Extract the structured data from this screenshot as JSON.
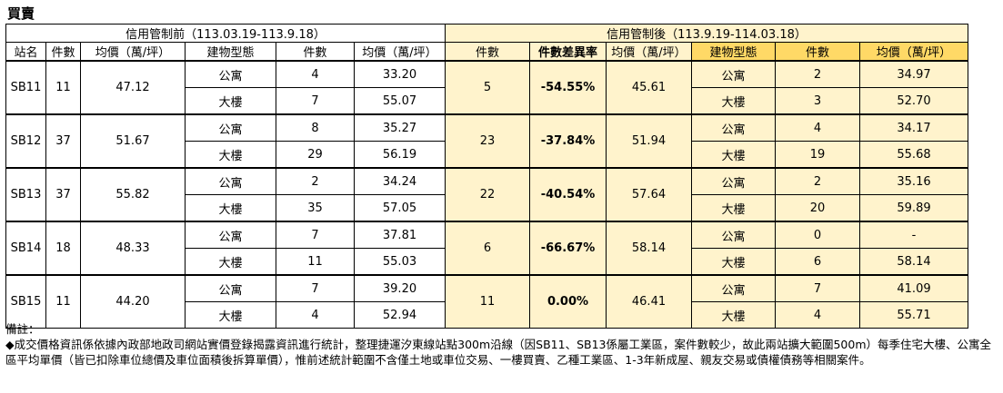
{
  "title": "買賣",
  "header": {
    "before_period": "信用管制前（113.03.19-113.9.18）",
    "after_period": "信用管制後（113.9.19-114.03.18）",
    "cols": {
      "station": "站名",
      "count": "件數",
      "avg_price": "均價（萬/坪）",
      "building_type": "建物型態",
      "type_count": "件數",
      "type_avg": "均價（萬/坪）",
      "after_count": "件數",
      "diff_rate": "件數差異率",
      "after_avg": "均價（萬/坪）",
      "after_building_type": "建物型態",
      "after_type_count": "件數",
      "after_type_avg": "均價（萬/坪）"
    }
  },
  "rows": [
    {
      "station": "SB11",
      "count": "11",
      "avg": "47.12",
      "before": [
        {
          "type": "公寓",
          "count": "4",
          "avg": "33.20"
        },
        {
          "type": "大樓",
          "count": "7",
          "avg": "55.07"
        }
      ],
      "after_count": "5",
      "diff": "-54.55%",
      "after_avg": "45.61",
      "after": [
        {
          "type": "公寓",
          "count": "2",
          "avg": "34.97"
        },
        {
          "type": "大樓",
          "count": "3",
          "avg": "52.70"
        }
      ]
    },
    {
      "station": "SB12",
      "count": "37",
      "avg": "51.67",
      "before": [
        {
          "type": "公寓",
          "count": "8",
          "avg": "35.27"
        },
        {
          "type": "大樓",
          "count": "29",
          "avg": "56.19"
        }
      ],
      "after_count": "23",
      "diff": "-37.84%",
      "after_avg": "51.94",
      "after": [
        {
          "type": "公寓",
          "count": "4",
          "avg": "34.17"
        },
        {
          "type": "大樓",
          "count": "19",
          "avg": "55.68"
        }
      ]
    },
    {
      "station": "SB13",
      "count": "37",
      "avg": "55.82",
      "before": [
        {
          "type": "公寓",
          "count": "2",
          "avg": "34.24"
        },
        {
          "type": "大樓",
          "count": "35",
          "avg": "57.05"
        }
      ],
      "after_count": "22",
      "diff": "-40.54%",
      "after_avg": "57.64",
      "after": [
        {
          "type": "公寓",
          "count": "2",
          "avg": "35.16"
        },
        {
          "type": "大樓",
          "count": "20",
          "avg": "59.89"
        }
      ]
    },
    {
      "station": "SB14",
      "count": "18",
      "avg": "48.33",
      "before": [
        {
          "type": "公寓",
          "count": "7",
          "avg": "37.81"
        },
        {
          "type": "大樓",
          "count": "11",
          "avg": "55.03"
        }
      ],
      "after_count": "6",
      "diff": "-66.67%",
      "after_avg": "58.14",
      "after": [
        {
          "type": "公寓",
          "count": "0",
          "avg": "-"
        },
        {
          "type": "大樓",
          "count": "6",
          "avg": "58.14"
        }
      ]
    },
    {
      "station": "SB15",
      "count": "11",
      "avg": "44.20",
      "before": [
        {
          "type": "公寓",
          "count": "7",
          "avg": "39.20"
        },
        {
          "type": "大樓",
          "count": "4",
          "avg": "52.94"
        }
      ],
      "after_count": "11",
      "diff": "0.00%",
      "after_avg": "46.41",
      "after": [
        {
          "type": "公寓",
          "count": "7",
          "avg": "41.09"
        },
        {
          "type": "大樓",
          "count": "4",
          "avg": "55.71"
        }
      ]
    }
  ],
  "notes": {
    "label": "備註：",
    "text": "◆成交價格資訊係依據內政部地政司網站實價登錄揭露資訊進行統計，整理捷運汐東線站點300m沿線（因SB11、SB13係屬工業區，案件數較少，故此兩站擴大範圍500m）每季住宅大樓、公寓全區平均單價（皆已扣除車位總價及車位面積後拆算單價），惟前述統計範圍不含僅土地或車位交易、一樓買賣、乙種工業區、1-3年新成屋、親友交易或債權債務等相關案件。"
  }
}
